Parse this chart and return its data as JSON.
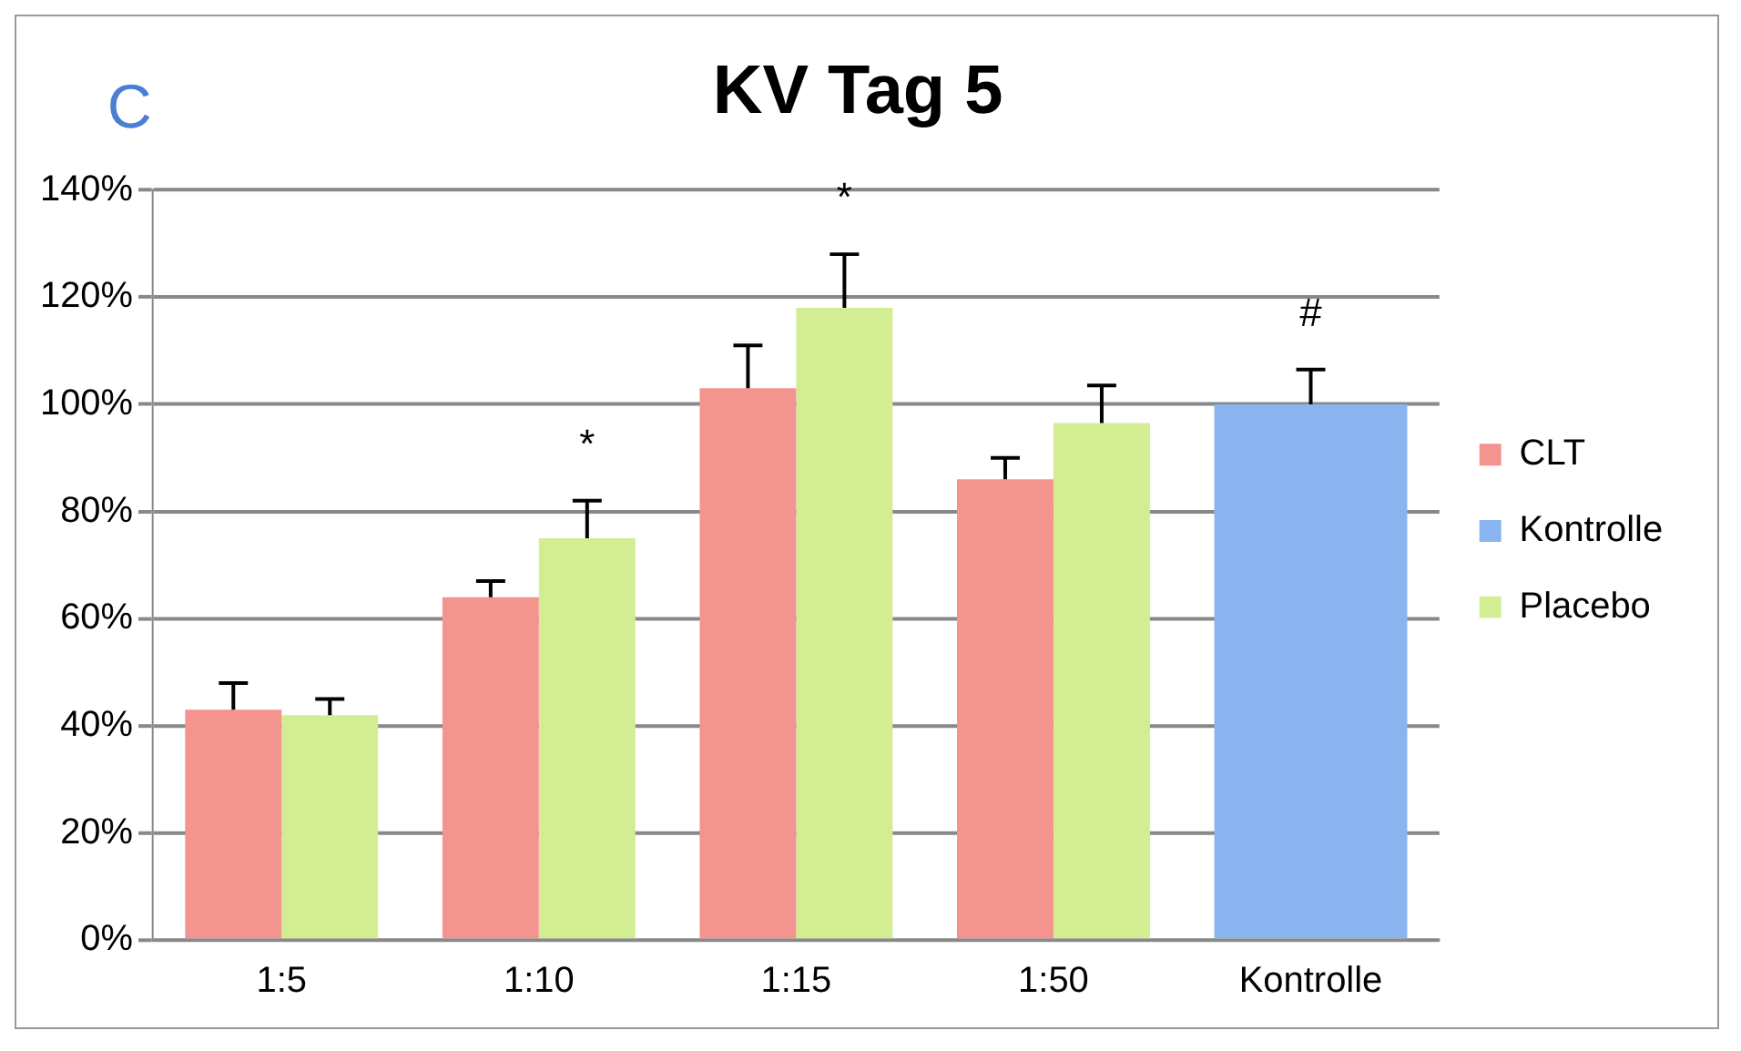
{
  "chart_data": {
    "type": "bar",
    "title": "KV Tag 5",
    "categories": [
      "1:5",
      "1:10",
      "1:15",
      "1:50",
      "Kontrolle"
    ],
    "series": [
      {
        "name": "CLT",
        "color": "#f4948e",
        "values": [
          43,
          64,
          103,
          86,
          null
        ],
        "errors": [
          [
            43,
            48
          ],
          [
            64,
            67
          ],
          [
            103,
            111
          ],
          [
            86,
            90
          ],
          null
        ]
      },
      {
        "name": "Kontrolle",
        "color": "#8ab4f0",
        "values": [
          null,
          null,
          null,
          null,
          100
        ],
        "errors": [
          null,
          null,
          null,
          null,
          [
            100,
            106.5
          ]
        ]
      },
      {
        "name": "Placebo",
        "color": "#d3ee92",
        "values": [
          42,
          75,
          118,
          96.5,
          null
        ],
        "errors": [
          [
            42,
            45
          ],
          [
            75,
            82
          ],
          [
            118,
            128
          ],
          [
            96.5,
            103.5
          ],
          null
        ]
      }
    ],
    "ylim": [
      0,
      140
    ],
    "yticks": [
      {
        "value": 0,
        "label": "0%"
      },
      {
        "value": 20,
        "label": "20%"
      },
      {
        "value": 40,
        "label": "40%"
      },
      {
        "value": 60,
        "label": "60%"
      },
      {
        "value": 80,
        "label": "80%"
      },
      {
        "value": 100,
        "label": "100%"
      },
      {
        "value": 120,
        "label": "120%"
      },
      {
        "value": 140,
        "label": "140%"
      }
    ],
    "annotations": [
      "C",
      "*",
      "*",
      "#"
    ],
    "grid": "y",
    "legend": "right"
  }
}
